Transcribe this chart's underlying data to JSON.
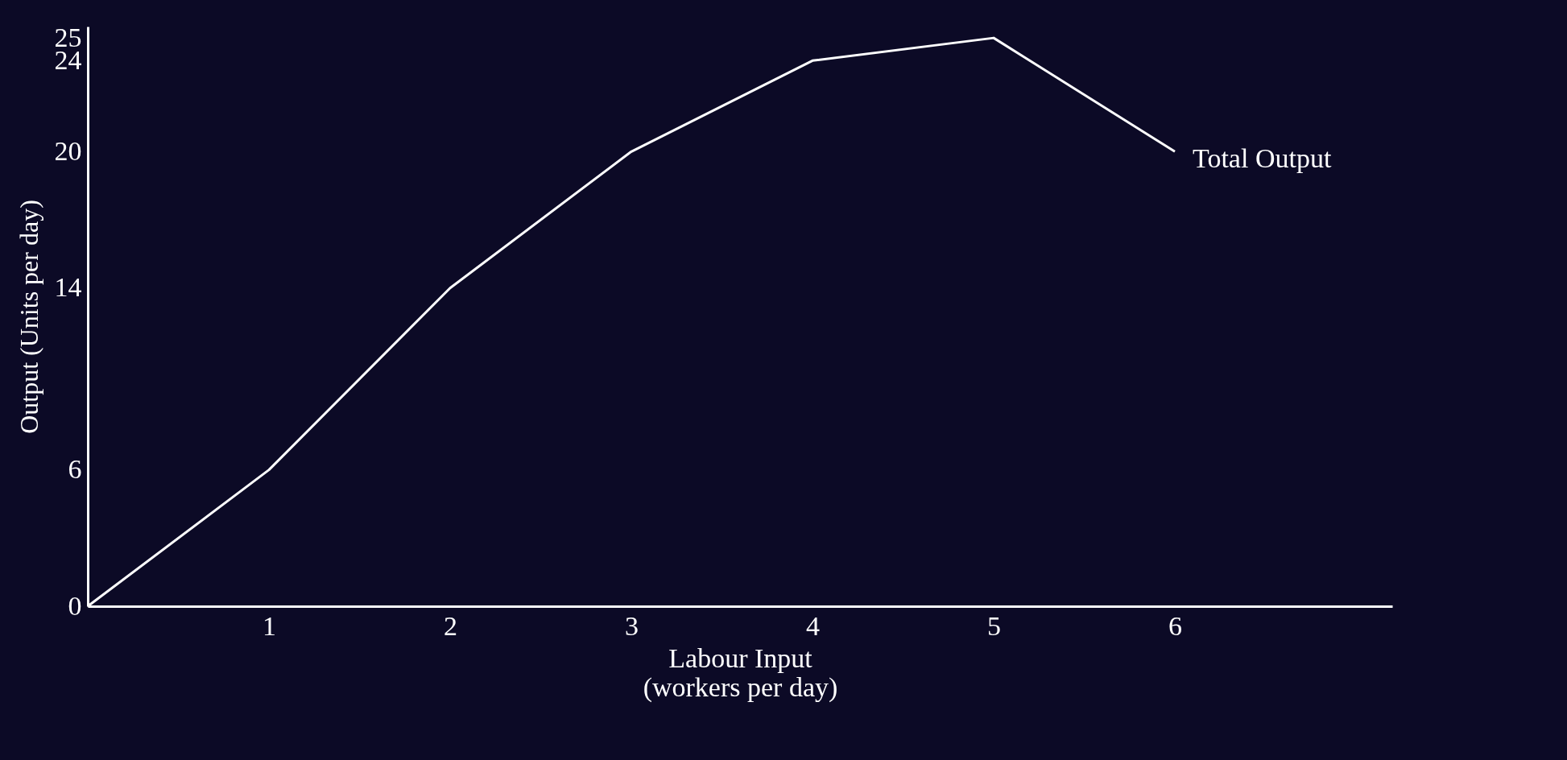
{
  "chart_data": {
    "type": "line",
    "xlabel": "Labour Input\n(workers per day)",
    "ylabel": "Output (Units per day)",
    "x": [
      0,
      1,
      2,
      3,
      4,
      5,
      6
    ],
    "series": [
      {
        "name": "Total Output",
        "color": "#ffffff",
        "values": [
          0,
          6,
          14,
          20,
          24,
          25,
          20
        ]
      }
    ],
    "xlim": [
      0,
      7.2
    ],
    "xticks": [
      1,
      2,
      3,
      4,
      5,
      6
    ],
    "ylim": [
      0,
      25.5
    ],
    "yticks": [
      0,
      6,
      14,
      20,
      24,
      25
    ],
    "marker": "none",
    "line_style": "solid",
    "grid": false,
    "legend": false
  }
}
